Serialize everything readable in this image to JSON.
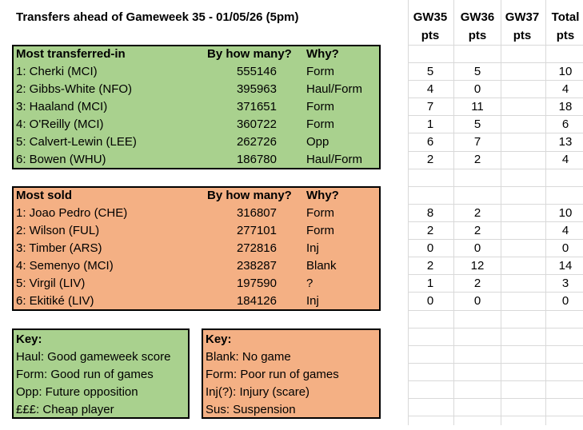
{
  "title": "Transfers ahead of Gameweek 35 - 01/05/26 (5pm)",
  "points_headers": [
    {
      "label": "GW35",
      "sub": "pts"
    },
    {
      "label": "GW36",
      "sub": "pts"
    },
    {
      "label": "GW37",
      "sub": "pts"
    },
    {
      "label": "Total",
      "sub": "pts"
    }
  ],
  "transferred_in": {
    "heading": "Most transferred-in",
    "count_header": "By how many?",
    "why_header": "Why?",
    "rows": [
      {
        "player": "1: Cherki (MCI)",
        "count": 555146,
        "why": "Form",
        "points": [
          5,
          5,
          null,
          10
        ]
      },
      {
        "player": "2: Gibbs-White (NFO)",
        "count": 395963,
        "why": "Haul/Form",
        "points": [
          4,
          0,
          null,
          4
        ]
      },
      {
        "player": "3: Haaland (MCI)",
        "count": 371651,
        "why": "Form",
        "points": [
          7,
          11,
          null,
          18
        ]
      },
      {
        "player": "4: O'Reilly (MCI)",
        "count": 360722,
        "why": "Form",
        "points": [
          1,
          5,
          null,
          6
        ]
      },
      {
        "player": "5: Calvert-Lewin (LEE)",
        "count": 262726,
        "why": "Opp",
        "points": [
          6,
          7,
          null,
          13
        ]
      },
      {
        "player": "6: Bowen (WHU)",
        "count": 186780,
        "why": "Haul/Form",
        "points": [
          2,
          2,
          null,
          4
        ]
      }
    ]
  },
  "sold": {
    "heading": "Most sold",
    "count_header": "By how many?",
    "why_header": "Why?",
    "rows": [
      {
        "player": "1: Joao Pedro (CHE)",
        "count": 316807,
        "why": "Form",
        "points": [
          8,
          2,
          null,
          10
        ]
      },
      {
        "player": "2: Wilson (FUL)",
        "count": 277101,
        "why": "Form",
        "points": [
          2,
          2,
          null,
          4
        ]
      },
      {
        "player": "3: Timber (ARS)",
        "count": 272816,
        "why": "Inj",
        "points": [
          0,
          0,
          null,
          0
        ]
      },
      {
        "player": "4: Semenyo (MCI)",
        "count": 238287,
        "why": "Blank",
        "points": [
          2,
          12,
          null,
          14
        ]
      },
      {
        "player": "5: Virgil (LIV)",
        "count": 197590,
        "why": "?",
        "points": [
          1,
          2,
          null,
          3
        ]
      },
      {
        "player": "6: Ekitiké (LIV)",
        "count": 184126,
        "why": "Inj",
        "points": [
          0,
          0,
          null,
          0
        ]
      }
    ]
  },
  "key_in": {
    "heading": "Key:",
    "items": [
      "Haul: Good gameweek score",
      "Form: Good run of games",
      "Opp: Future opposition",
      "£££: Cheap player"
    ]
  },
  "key_sold": {
    "heading": "Key:",
    "items": [
      "Blank: No game",
      "Form: Poor run of games",
      "Inj(?): Injury (scare)",
      "Sus: Suspension"
    ]
  }
}
